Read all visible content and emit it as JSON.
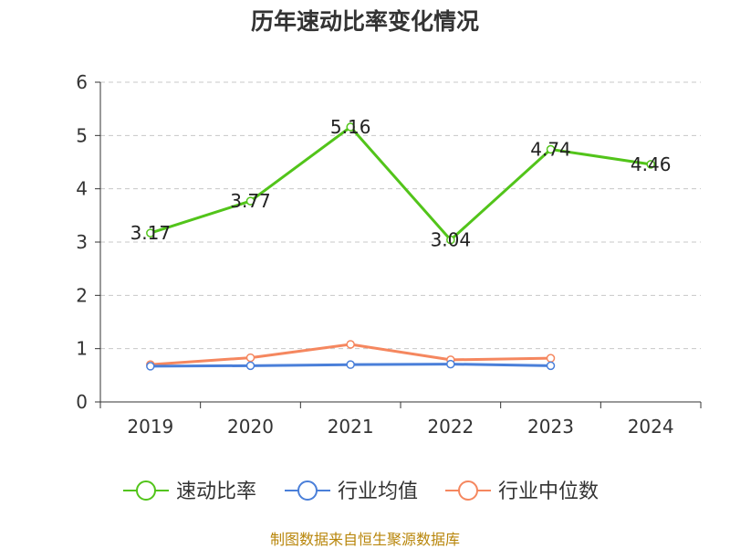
{
  "chart_data": {
    "type": "line",
    "title": "历年速动比率变化情况",
    "categories": [
      "2019",
      "2020",
      "2021",
      "2022",
      "2023",
      "2024"
    ],
    "ylim": [
      0,
      6
    ],
    "yticks": [
      "0",
      "1",
      "2",
      "3",
      "4",
      "5",
      "6"
    ],
    "grid": true,
    "legend_position": "bottom",
    "series": [
      {
        "name": "速动比率",
        "color": "#52c41a",
        "values": [
          3.17,
          3.77,
          5.16,
          3.04,
          4.74,
          4.46
        ],
        "labels": [
          "3.17",
          "3.77",
          "5.16",
          "3.04",
          "4.74",
          "4.46"
        ]
      },
      {
        "name": "行业均值",
        "color": "#4a7fd9",
        "values": [
          0.67,
          0.68,
          0.7,
          0.71,
          0.68,
          null
        ]
      },
      {
        "name": "行业中位数",
        "color": "#f5875f",
        "values": [
          0.7,
          0.83,
          1.08,
          0.79,
          0.82,
          null
        ]
      }
    ]
  },
  "footer": {
    "source": "制图数据来自恒生聚源数据库"
  }
}
